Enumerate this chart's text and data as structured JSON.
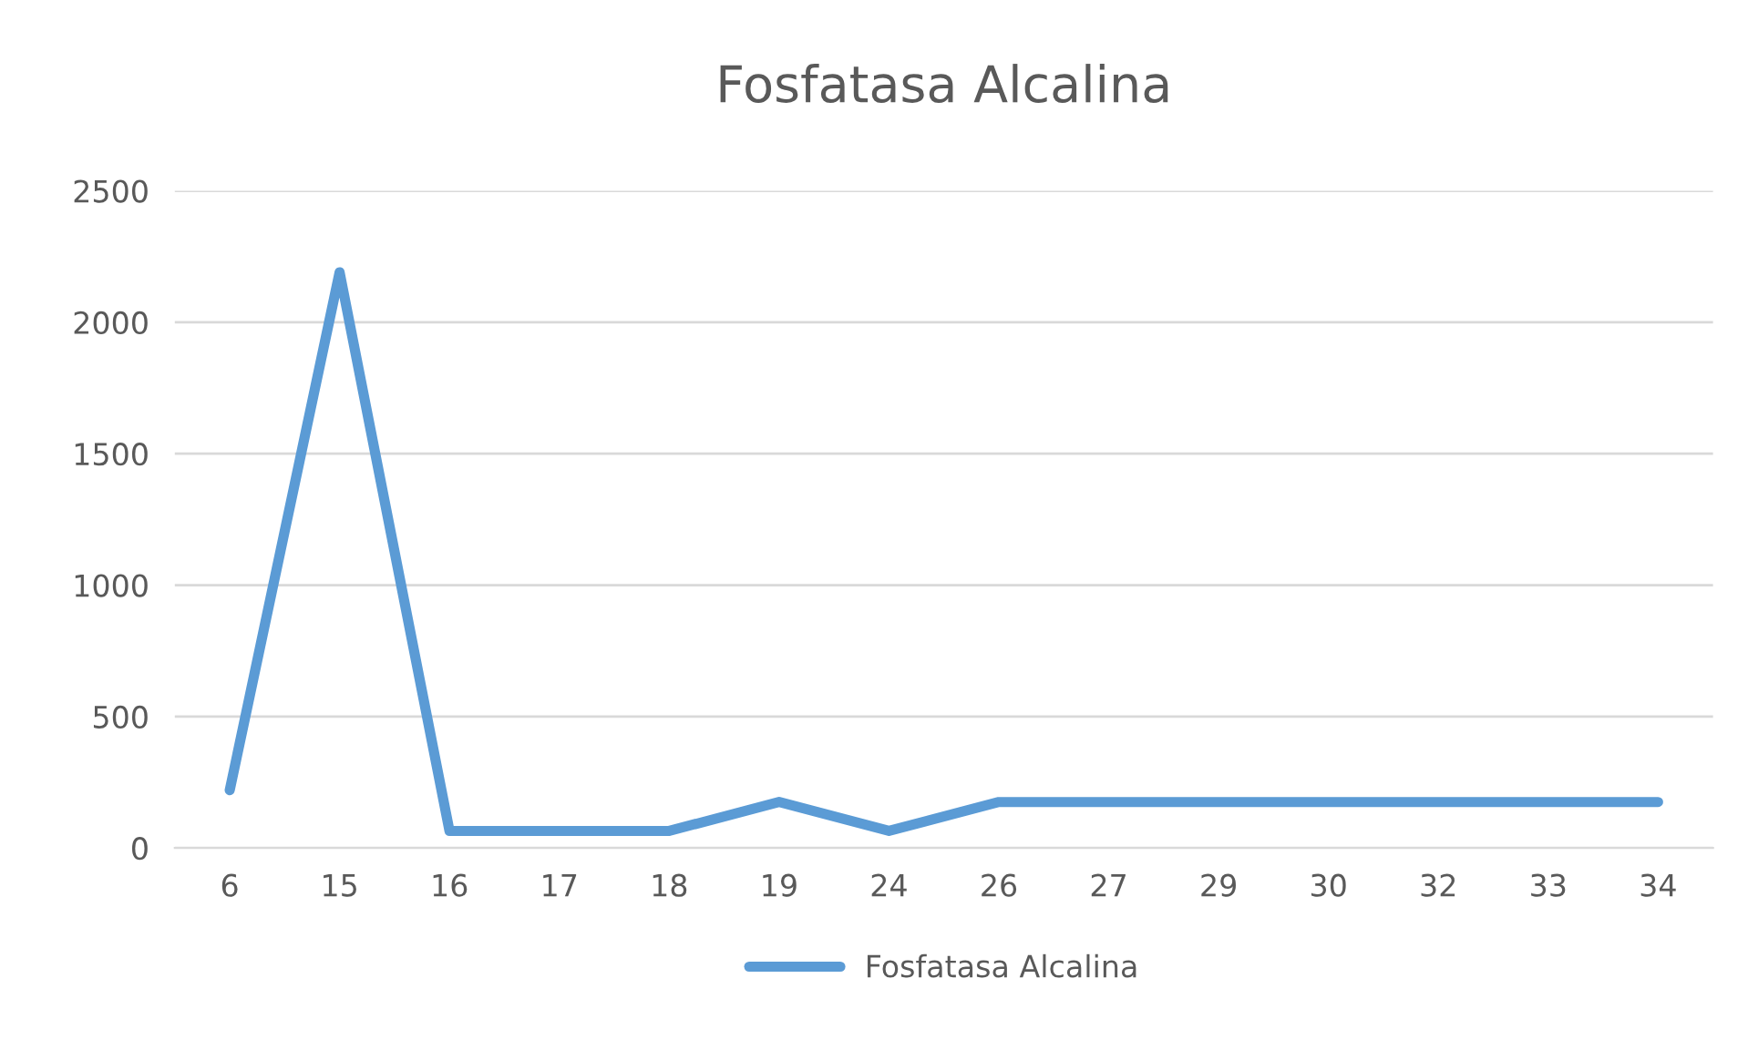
{
  "chart_data": {
    "type": "line",
    "title": "Fosfatasa Alcalina",
    "categories": [
      "6",
      "15",
      "16",
      "17",
      "18",
      "19",
      "24",
      "26",
      "27",
      "29",
      "30",
      "32",
      "33",
      "34"
    ],
    "series": [
      {
        "name": "Fosfatasa Alcalina",
        "color": "#5b9bd5",
        "values": [
          220,
          2190,
          65,
          65,
          65,
          175,
          65,
          175,
          175,
          175,
          175,
          175,
          175,
          175
        ]
      }
    ],
    "ylim": [
      0,
      2500
    ],
    "yticks": [
      0,
      500,
      1000,
      1500,
      2000,
      2500
    ],
    "grid": "y",
    "legend": "bottom",
    "marker": "none",
    "line_style": "solid"
  }
}
